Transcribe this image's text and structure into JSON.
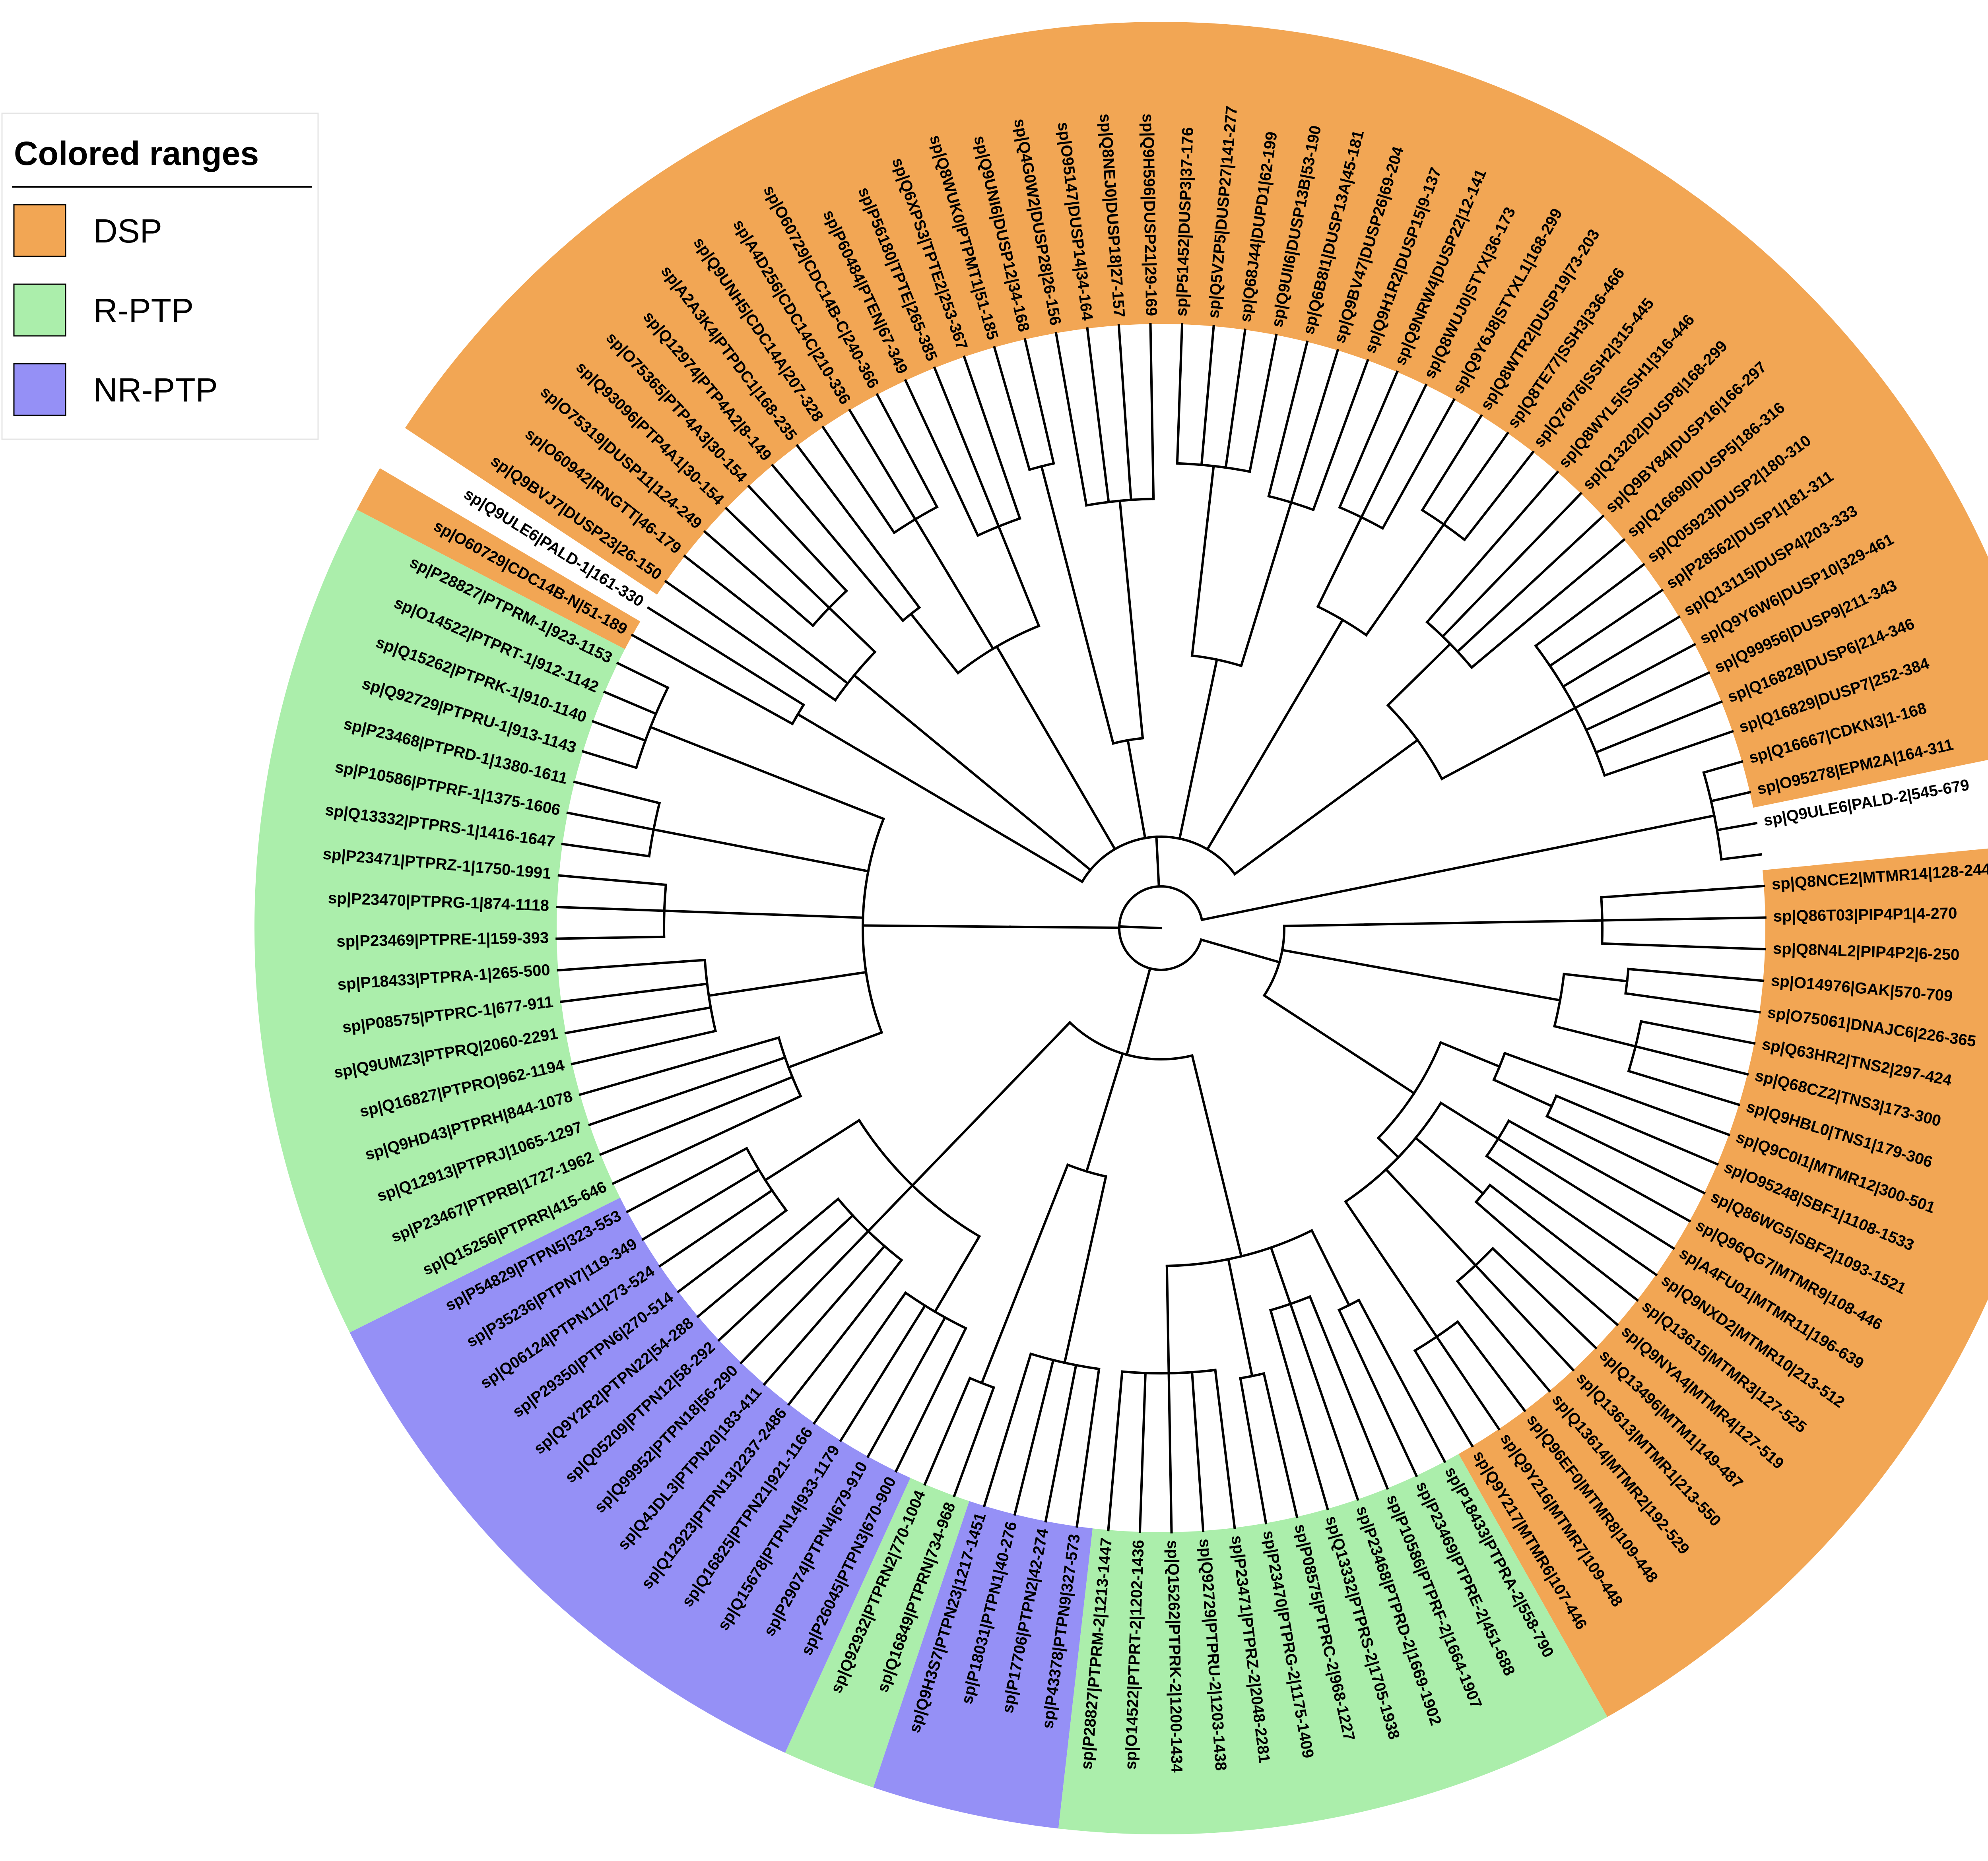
{
  "legend": {
    "title": "Colored ranges",
    "items": [
      {
        "label": "DSP",
        "color": "#f2a654"
      },
      {
        "label": "R-PTP",
        "color": "#abeeab"
      },
      {
        "label": "NR-PTP",
        "color": "#9590f6"
      }
    ]
  },
  "tree": {
    "layout": "circular",
    "leaves": [
      {
        "label": "sp|Q8NCE2|MTMR14|128-244",
        "group": "DSP"
      },
      {
        "label": "sp|Q86T03|PIP4P1|4-270",
        "group": "DSP"
      },
      {
        "label": "sp|Q8N4L2|PIP4P2|6-250",
        "group": "DSP"
      },
      {
        "label": "sp|O14976|GAK|570-709",
        "group": "DSP"
      },
      {
        "label": "sp|O75061|DNAJC6|226-365",
        "group": "DSP"
      },
      {
        "label": "sp|Q63HR2|TNS2|297-424",
        "group": "DSP"
      },
      {
        "label": "sp|Q68CZ2|TNS3|173-300",
        "group": "DSP"
      },
      {
        "label": "sp|Q9HBL0|TNS1|179-306",
        "group": "DSP"
      },
      {
        "label": "sp|Q9C0I1|MTMR12|300-501",
        "group": "DSP"
      },
      {
        "label": "sp|O95248|SBF1|1108-1533",
        "group": "DSP"
      },
      {
        "label": "sp|Q86WG5|SBF2|1093-1521",
        "group": "DSP"
      },
      {
        "label": "sp|Q96QG7|MTMR9|108-446",
        "group": "DSP"
      },
      {
        "label": "sp|A4FU01|MTMR11|196-639",
        "group": "DSP"
      },
      {
        "label": "sp|Q9NXD2|MTMR10|213-512",
        "group": "DSP"
      },
      {
        "label": "sp|Q13615|MTMR3|127-525",
        "group": "DSP"
      },
      {
        "label": "sp|Q9NYA4|MTMR4|127-519",
        "group": "DSP"
      },
      {
        "label": "sp|Q13496|MTM1|149-487",
        "group": "DSP"
      },
      {
        "label": "sp|Q13613|MTMR1|213-550",
        "group": "DSP"
      },
      {
        "label": "sp|Q13614|MTMR2|192-529",
        "group": "DSP"
      },
      {
        "label": "sp|Q96EF0|MTMR8|109-448",
        "group": "DSP"
      },
      {
        "label": "sp|Q9Y216|MTMR7|109-448",
        "group": "DSP"
      },
      {
        "label": "sp|Q9Y217|MTMR6|107-446",
        "group": "DSP"
      },
      {
        "label": "sp|P18433|PTPRA-2|558-790",
        "group": "R-PTP"
      },
      {
        "label": "sp|P23469|PTPRE-2|451-688",
        "group": "R-PTP"
      },
      {
        "label": "sp|P10586|PTPRF-2|1664-1907",
        "group": "R-PTP"
      },
      {
        "label": "sp|P23468|PTPRD-2|1669-1902",
        "group": "R-PTP"
      },
      {
        "label": "sp|Q13332|PTPRS-2|1705-1938",
        "group": "R-PTP"
      },
      {
        "label": "sp|P08575|PTPRC-2|968-1227",
        "group": "R-PTP"
      },
      {
        "label": "sp|P23470|PTPRG-2|1175-1409",
        "group": "R-PTP"
      },
      {
        "label": "sp|P23471|PTPRZ-2|2048-2281",
        "group": "R-PTP"
      },
      {
        "label": "sp|Q92729|PTPRU-2|1203-1438",
        "group": "R-PTP"
      },
      {
        "label": "sp|Q15262|PTPRK-2|1200-1434",
        "group": "R-PTP"
      },
      {
        "label": "sp|O14522|PTPRT-2|1202-1436",
        "group": "R-PTP"
      },
      {
        "label": "sp|P28827|PTPRM-2|1213-1447",
        "group": "R-PTP"
      },
      {
        "label": "sp|P43378|PTPN9|327-573",
        "group": "NR-PTP"
      },
      {
        "label": "sp|P17706|PTPN2|42-274",
        "group": "NR-PTP"
      },
      {
        "label": "sp|P18031|PTPN1|40-276",
        "group": "NR-PTP"
      },
      {
        "label": "sp|Q9H3S7|PTPN23|1217-1451",
        "group": "NR-PTP"
      },
      {
        "label": "sp|Q16849|PTPRN|734-968",
        "group": "R-PTP"
      },
      {
        "label": "sp|Q92932|PTPRN2|770-1004",
        "group": "R-PTP"
      },
      {
        "label": "sp|P26045|PTPN3|670-900",
        "group": "NR-PTP"
      },
      {
        "label": "sp|P29074|PTPN4|679-910",
        "group": "NR-PTP"
      },
      {
        "label": "sp|Q15678|PTPN14|933-1179",
        "group": "NR-PTP"
      },
      {
        "label": "sp|Q16825|PTPN21|921-1166",
        "group": "NR-PTP"
      },
      {
        "label": "sp|Q12923|PTPN13|2237-2486",
        "group": "NR-PTP"
      },
      {
        "label": "sp|Q4JDL3|PTPN20|183-411",
        "group": "NR-PTP"
      },
      {
        "label": "sp|Q99952|PTPN18|56-290",
        "group": "NR-PTP"
      },
      {
        "label": "sp|Q05209|PTPN12|58-292",
        "group": "NR-PTP"
      },
      {
        "label": "sp|Q9Y2R2|PTPN22|54-288",
        "group": "NR-PTP"
      },
      {
        "label": "sp|P29350|PTPN6|270-514",
        "group": "NR-PTP"
      },
      {
        "label": "sp|Q06124|PTPN11|273-524",
        "group": "NR-PTP"
      },
      {
        "label": "sp|P35236|PTPN7|119-349",
        "group": "NR-PTP"
      },
      {
        "label": "sp|P54829|PTPN5|323-553",
        "group": "NR-PTP"
      },
      {
        "label": "sp|Q15256|PTPRR|415-646",
        "group": "R-PTP"
      },
      {
        "label": "sp|P23467|PTPRB|1727-1962",
        "group": "R-PTP"
      },
      {
        "label": "sp|Q12913|PTPRJ|1065-1297",
        "group": "R-PTP"
      },
      {
        "label": "sp|Q9HD43|PTPRH|844-1078",
        "group": "R-PTP"
      },
      {
        "label": "sp|Q16827|PTPRO|962-1194",
        "group": "R-PTP"
      },
      {
        "label": "sp|Q9UMZ3|PTPRQ|2060-2291",
        "group": "R-PTP"
      },
      {
        "label": "sp|P08575|PTPRC-1|677-911",
        "group": "R-PTP"
      },
      {
        "label": "sp|P18433|PTPRA-1|265-500",
        "group": "R-PTP"
      },
      {
        "label": "sp|P23469|PTPRE-1|159-393",
        "group": "R-PTP"
      },
      {
        "label": "sp|P23470|PTPRG-1|874-1118",
        "group": "R-PTP"
      },
      {
        "label": "sp|P23471|PTPRZ-1|1750-1991",
        "group": "R-PTP"
      },
      {
        "label": "sp|Q13332|PTPRS-1|1416-1647",
        "group": "R-PTP"
      },
      {
        "label": "sp|P10586|PTPRF-1|1375-1606",
        "group": "R-PTP"
      },
      {
        "label": "sp|P23468|PTPRD-1|1380-1611",
        "group": "R-PTP"
      },
      {
        "label": "sp|Q92729|PTPRU-1|913-1143",
        "group": "R-PTP"
      },
      {
        "label": "sp|Q15262|PTPRK-1|910-1140",
        "group": "R-PTP"
      },
      {
        "label": "sp|O14522|PTPRT-1|912-1142",
        "group": "R-PTP"
      },
      {
        "label": "sp|P28827|PTPRM-1|923-1153",
        "group": "R-PTP"
      },
      {
        "label": "sp|O60729|CDC14B-N|51-189",
        "group": "DSP"
      },
      {
        "label": "sp|Q9ULE6|PALD-1|161-330",
        "group": "none"
      },
      {
        "label": "sp|Q9BVJ7|DUSP23|26-150",
        "group": "DSP"
      },
      {
        "label": "sp|O60942|RNGTT|46-179",
        "group": "DSP"
      },
      {
        "label": "sp|O75319|DUSP11|124-249",
        "group": "DSP"
      },
      {
        "label": "sp|Q93096|PTP4A1|30-154",
        "group": "DSP"
      },
      {
        "label": "sp|O75365|PTP4A3|30-154",
        "group": "DSP"
      },
      {
        "label": "sp|Q12974|PTP4A2|8-149",
        "group": "DSP"
      },
      {
        "label": "sp|A2A3K4|PTPDC1|168-235",
        "group": "DSP"
      },
      {
        "label": "sp|Q9UNH5|CDC14A|207-328",
        "group": "DSP"
      },
      {
        "label": "sp|A4D256|CDC14C|210-336",
        "group": "DSP"
      },
      {
        "label": "sp|O60729|CDC14B-C|240-366",
        "group": "DSP"
      },
      {
        "label": "sp|P60484|PTEN|67-349",
        "group": "DSP"
      },
      {
        "label": "sp|P56180|TPTE|265-385",
        "group": "DSP"
      },
      {
        "label": "sp|Q6XPS3|TPTE2|253-367",
        "group": "DSP"
      },
      {
        "label": "sp|Q8WUK0|PTPMT1|51-185",
        "group": "DSP"
      },
      {
        "label": "sp|Q9UNI6|DUSP12|34-168",
        "group": "DSP"
      },
      {
        "label": "sp|Q4G0W2|DUSP28|26-156",
        "group": "DSP"
      },
      {
        "label": "sp|O95147|DUSP14|34-164",
        "group": "DSP"
      },
      {
        "label": "sp|Q8NEJ0|DUSP18|27-157",
        "group": "DSP"
      },
      {
        "label": "sp|Q9H596|DUSP21|29-169",
        "group": "DSP"
      },
      {
        "label": "sp|P51452|DUSP3|37-176",
        "group": "DSP"
      },
      {
        "label": "sp|Q5VZP5|DUSP27|141-277",
        "group": "DSP"
      },
      {
        "label": "sp|Q68J44|DUPD1|62-199",
        "group": "DSP"
      },
      {
        "label": "sp|Q9UII6|DUSP13B|53-190",
        "group": "DSP"
      },
      {
        "label": "sp|Q6B8I1|DUSP13A|45-181",
        "group": "DSP"
      },
      {
        "label": "sp|Q9BV47|DUSP26|69-204",
        "group": "DSP"
      },
      {
        "label": "sp|Q9H1R2|DUSP15|9-137",
        "group": "DSP"
      },
      {
        "label": "sp|Q9NRW4|DUSP22|12-141",
        "group": "DSP"
      },
      {
        "label": "sp|Q8WUJ0|STYX|36-173",
        "group": "DSP"
      },
      {
        "label": "sp|Q9Y6J8|STYXL1|168-299",
        "group": "DSP"
      },
      {
        "label": "sp|Q8WTR2|DUSP19|73-203",
        "group": "DSP"
      },
      {
        "label": "sp|Q8TE77|SSH3|336-466",
        "group": "DSP"
      },
      {
        "label": "sp|Q76I76|SSH2|315-445",
        "group": "DSP"
      },
      {
        "label": "sp|Q8WYL5|SSH1|316-446",
        "group": "DSP"
      },
      {
        "label": "sp|Q13202|DUSP8|168-299",
        "group": "DSP"
      },
      {
        "label": "sp|Q9BY84|DUSP16|166-297",
        "group": "DSP"
      },
      {
        "label": "sp|Q16690|DUSP5|186-316",
        "group": "DSP"
      },
      {
        "label": "sp|Q05923|DUSP2|180-310",
        "group": "DSP"
      },
      {
        "label": "sp|P28562|DUSP1|181-311",
        "group": "DSP"
      },
      {
        "label": "sp|Q13115|DUSP4|203-333",
        "group": "DSP"
      },
      {
        "label": "sp|Q9Y6W6|DUSP10|329-461",
        "group": "DSP"
      },
      {
        "label": "sp|Q99956|DUSP9|211-343",
        "group": "DSP"
      },
      {
        "label": "sp|Q16828|DUSP6|214-346",
        "group": "DSP"
      },
      {
        "label": "sp|Q16829|DUSP7|252-384",
        "group": "DSP"
      },
      {
        "label": "sp|Q16667|CDKN3|1-168",
        "group": "DSP"
      },
      {
        "label": "sp|O95278|EPM2A|164-311",
        "group": "DSP"
      },
      {
        "label": "sp|Q9ULE6|PALD-2|545-679",
        "group": "none"
      }
    ]
  }
}
